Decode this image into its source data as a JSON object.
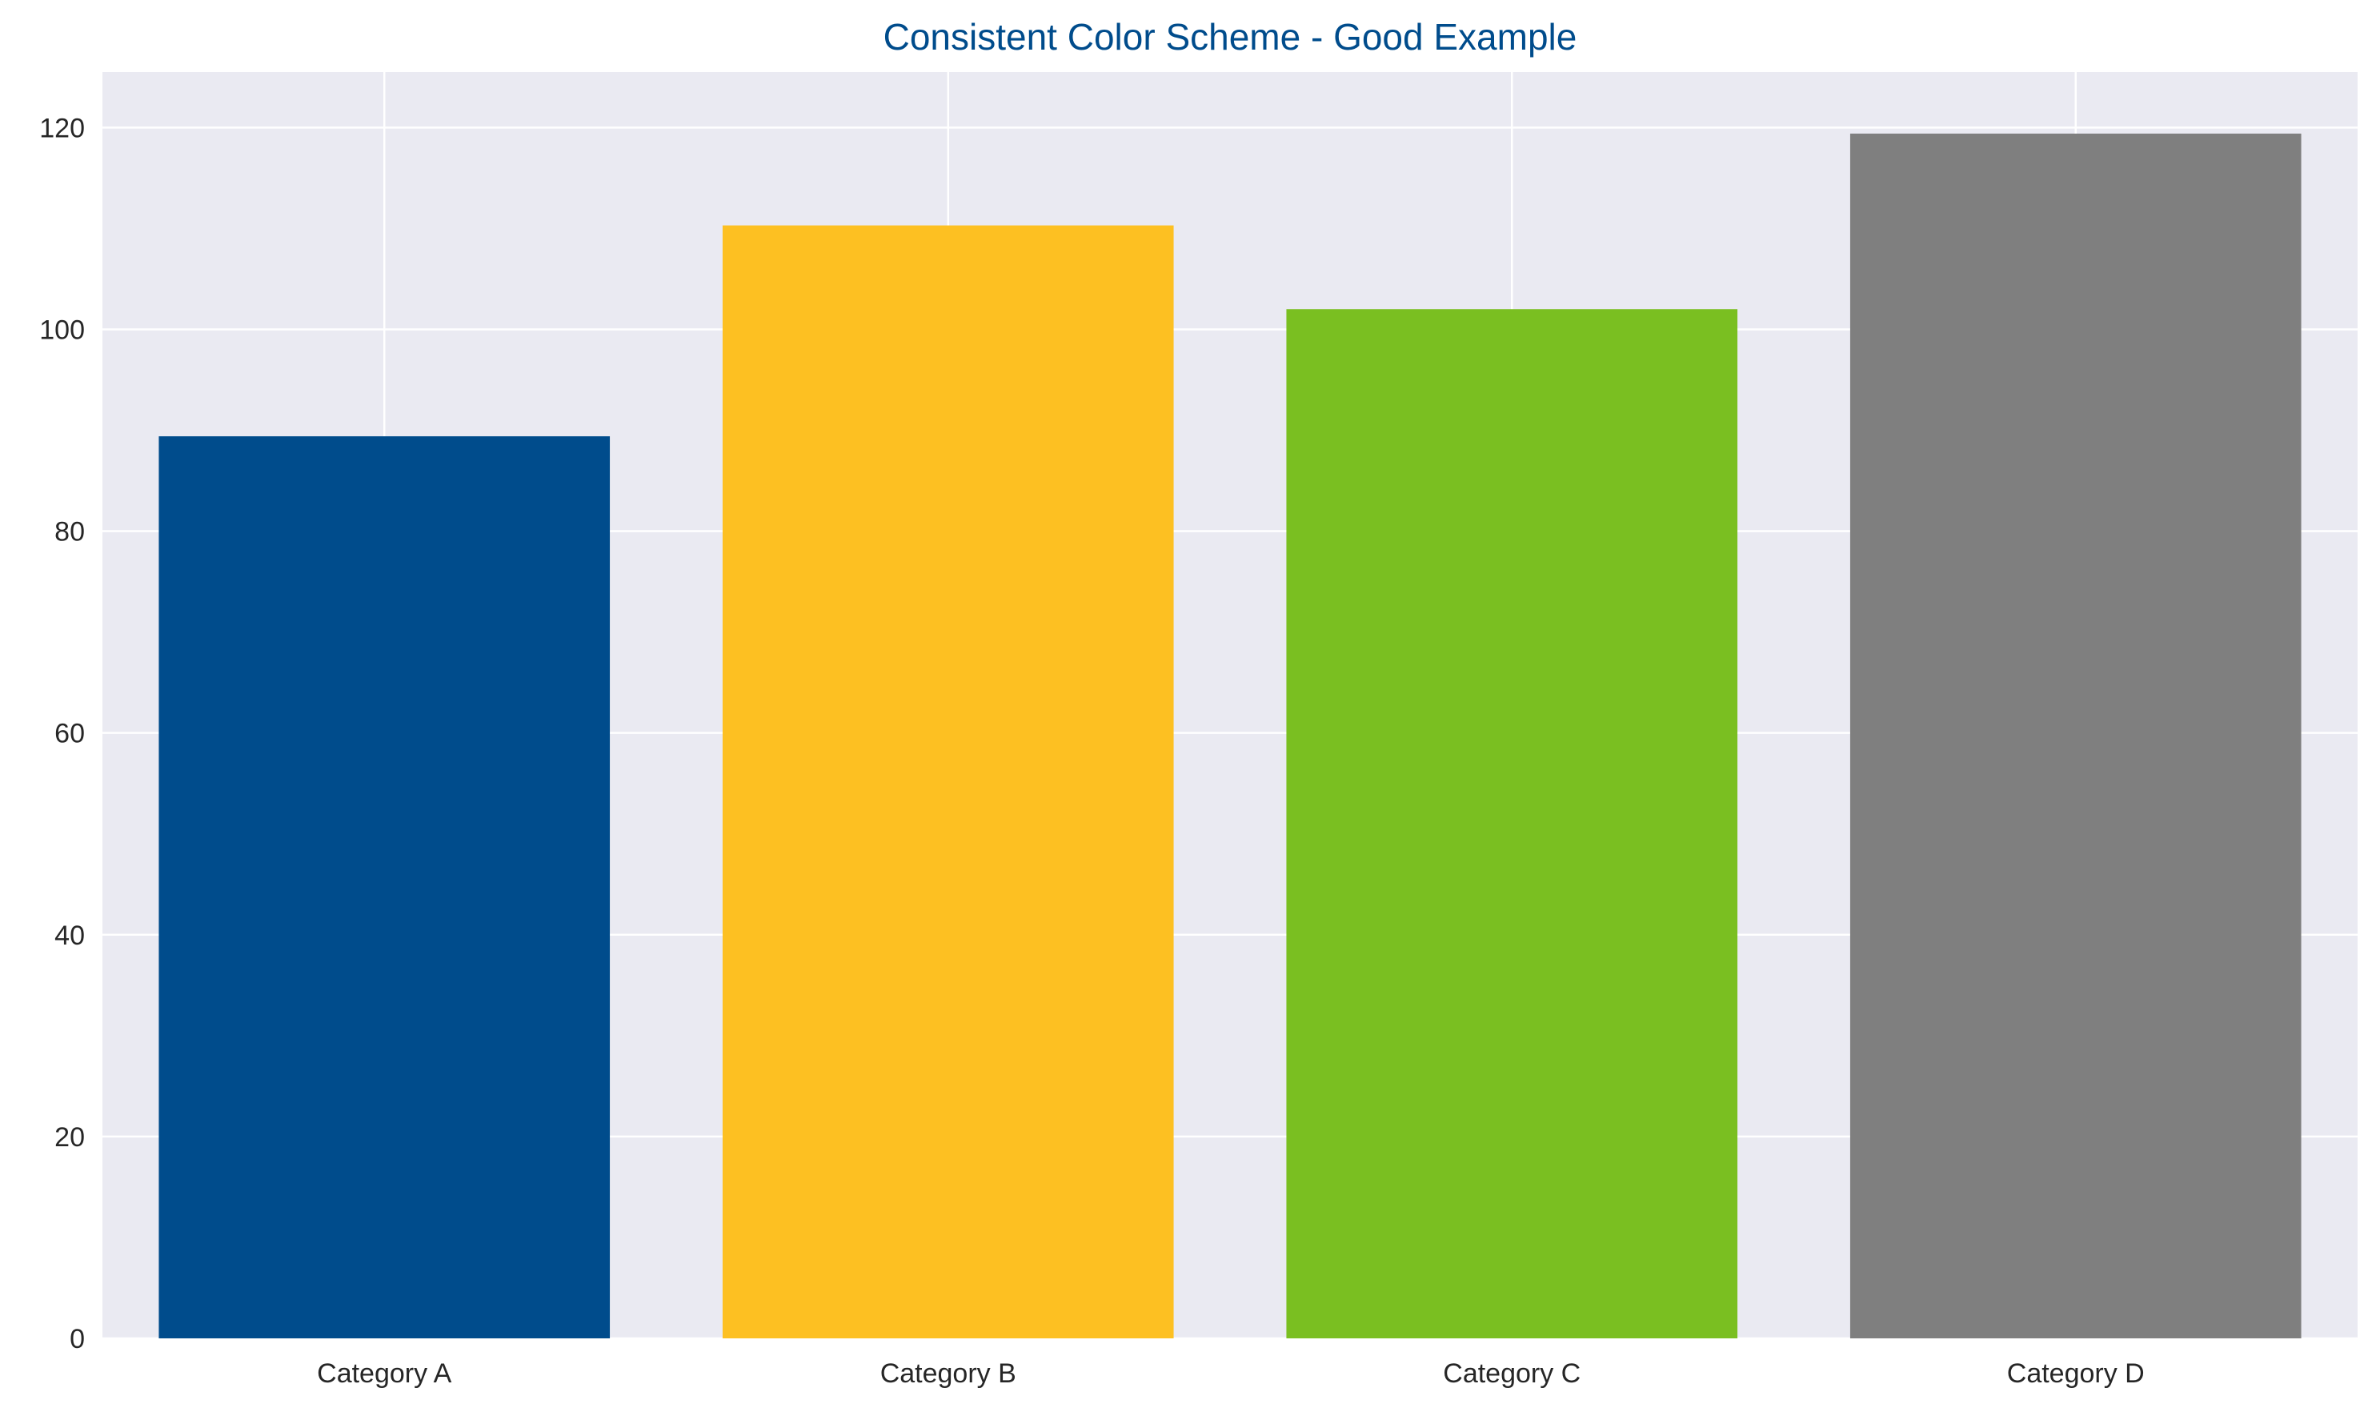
{
  "chart_data": {
    "type": "bar",
    "title": "Consistent Color Scheme - Good Example",
    "xlabel": "",
    "ylabel": "",
    "categories": [
      "Category A",
      "Category B",
      "Category C",
      "Category D"
    ],
    "values": [
      89.4,
      110.3,
      102.0,
      119.4
    ],
    "ylim": [
      0,
      125.5
    ],
    "yticks": [
      0,
      20,
      40,
      60,
      80,
      100,
      120
    ],
    "grid": true,
    "colors": {
      "title": "#004C8C",
      "bars": [
        "#004C8C",
        "#FDC022",
        "#7ABF21",
        "#7F7F7F"
      ],
      "plot_background": "#EAEAF2",
      "grid": "#FFFFFF"
    }
  }
}
